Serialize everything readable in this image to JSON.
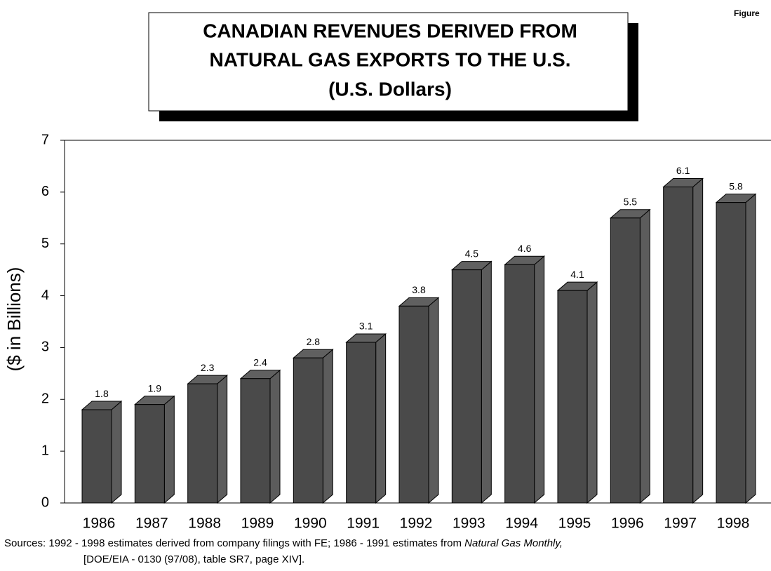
{
  "chart_data": {
    "type": "bar",
    "title": [
      "CANADIAN REVENUES DERIVED FROM",
      "NATURAL GAS EXPORTS TO THE U.S.",
      "(U.S. Dollars)"
    ],
    "figure_label": "Figure",
    "y_label": "($ in Billions)",
    "categories": [
      "1986",
      "1987",
      "1988",
      "1989",
      "1990",
      "1991",
      "1992",
      "1993",
      "1994",
      "1995",
      "1996",
      "1997",
      "1998"
    ],
    "values": [
      1.8,
      1.9,
      2.3,
      2.4,
      2.8,
      3.1,
      3.8,
      4.5,
      4.6,
      4.1,
      5.5,
      6.1,
      5.8
    ],
    "color": "#4a4a4a",
    "ylim": [
      0,
      7
    ],
    "yticks": [
      0,
      1,
      2,
      3,
      4,
      5,
      6,
      7
    ],
    "sources": {
      "line1": "Sources: 1992 - 1998 estimates derived from company filings with FE; 1986 - 1991 estimates from",
      "italic": "Natural Gas Monthly,",
      "line2": "[DOE/EIA - 0130 (97/08), table SR7, page XIV]."
    }
  }
}
